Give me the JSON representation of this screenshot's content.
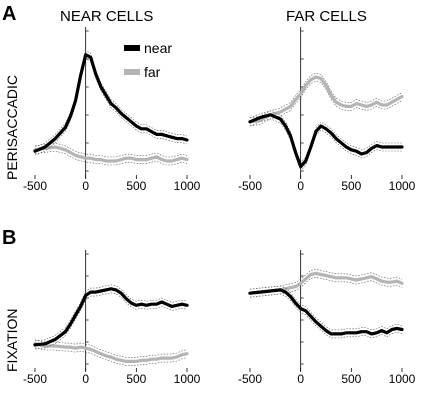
{
  "figure": {
    "panel_a_letter": "A",
    "panel_b_letter": "B",
    "col_near_title": "NEAR CELLS",
    "col_far_title": "FAR CELLS",
    "row_a_label": "PERISACCADIC",
    "row_b_label": "FIXATION",
    "legend_near": "near",
    "legend_far": "far"
  },
  "colors": {
    "near": "#000000",
    "far": "#b4b4b4"
  },
  "chart_data": [
    {
      "type": "line",
      "panel": "A-near",
      "x": [
        -500,
        -400,
        -300,
        -200,
        -150,
        -100,
        -50,
        0,
        50,
        100,
        150,
        200,
        250,
        300,
        350,
        400,
        450,
        500,
        550,
        600,
        650,
        700,
        750,
        800,
        850,
        900,
        950,
        1000
      ],
      "xticks": [
        -500,
        0,
        500,
        1000
      ],
      "xlim": [
        -500,
        1000
      ],
      "ylim": [
        0,
        10
      ],
      "series": [
        {
          "name": "near",
          "values": [
            1.7,
            2.0,
            2.6,
            3.4,
            4.2,
            5.3,
            7.1,
            8.6,
            8.4,
            7.2,
            6.3,
            5.7,
            5.1,
            4.8,
            4.4,
            4.1,
            3.8,
            3.5,
            3.3,
            3.3,
            3.1,
            2.9,
            2.9,
            2.8,
            2.7,
            2.6,
            2.6,
            2.5
          ]
        },
        {
          "name": "far",
          "values": [
            1.8,
            1.9,
            2.0,
            1.8,
            1.6,
            1.4,
            1.3,
            1.2,
            1.2,
            1.1,
            1.1,
            1.0,
            1.0,
            1.0,
            1.1,
            1.2,
            1.2,
            1.1,
            1.1,
            1.1,
            1.2,
            1.3,
            1.1,
            1.0,
            1.0,
            1.1,
            1.2,
            1.1
          ]
        }
      ]
    },
    {
      "type": "line",
      "panel": "A-far",
      "x": [
        -500,
        -400,
        -300,
        -200,
        -150,
        -100,
        -50,
        0,
        50,
        100,
        150,
        200,
        250,
        300,
        350,
        400,
        450,
        500,
        550,
        600,
        650,
        700,
        750,
        800,
        850,
        900,
        950,
        1000
      ],
      "xticks": [
        -500,
        0,
        500,
        1000
      ],
      "xlim": [
        -500,
        1000
      ],
      "ylim": [
        0,
        10
      ],
      "series": [
        {
          "name": "near",
          "values": [
            3.8,
            4.1,
            4.3,
            4.0,
            3.5,
            2.8,
            1.6,
            0.6,
            1.0,
            2.0,
            3.1,
            3.5,
            3.3,
            3.0,
            2.6,
            2.3,
            2.0,
            1.8,
            1.7,
            1.5,
            1.6,
            1.9,
            2.1,
            2.0,
            2.0,
            2.0,
            2.0,
            2.0
          ]
        },
        {
          "name": "far",
          "values": [
            3.8,
            3.9,
            4.3,
            4.5,
            4.7,
            4.9,
            5.4,
            5.8,
            6.4,
            6.8,
            7.0,
            6.9,
            6.4,
            5.7,
            5.2,
            5.0,
            4.9,
            4.9,
            5.1,
            5.0,
            4.9,
            5.0,
            5.2,
            5.0,
            5.0,
            5.2,
            5.4,
            5.6
          ]
        }
      ]
    },
    {
      "type": "line",
      "panel": "B-near",
      "x": [
        -500,
        -400,
        -300,
        -200,
        -150,
        -100,
        -50,
        0,
        50,
        100,
        150,
        200,
        250,
        300,
        350,
        400,
        450,
        500,
        550,
        600,
        650,
        700,
        750,
        800,
        850,
        900,
        950,
        1000
      ],
      "xticks": [
        -500,
        0,
        500,
        1000
      ],
      "xlim": [
        -500,
        1000
      ],
      "ylim": [
        0,
        10
      ],
      "series": [
        {
          "name": "near",
          "values": [
            2.1,
            2.2,
            2.6,
            3.3,
            4.0,
            4.8,
            5.6,
            6.6,
            6.9,
            6.9,
            7.0,
            7.1,
            7.2,
            7.1,
            6.8,
            6.3,
            5.9,
            5.7,
            5.8,
            5.7,
            5.8,
            5.8,
            6.0,
            5.8,
            5.6,
            5.7,
            5.8,
            5.7
          ]
        },
        {
          "name": "far",
          "values": [
            2.2,
            2.0,
            2.0,
            1.9,
            1.9,
            1.8,
            1.9,
            1.8,
            1.7,
            1.5,
            1.3,
            1.1,
            1.0,
            0.8,
            0.7,
            0.6,
            0.6,
            0.6,
            0.7,
            0.7,
            0.8,
            0.8,
            0.9,
            0.9,
            0.9,
            1.0,
            1.2,
            1.3
          ]
        }
      ]
    },
    {
      "type": "line",
      "panel": "B-far",
      "x": [
        -500,
        -400,
        -300,
        -200,
        -150,
        -100,
        -50,
        0,
        50,
        100,
        150,
        200,
        250,
        300,
        350,
        400,
        450,
        500,
        550,
        600,
        650,
        700,
        750,
        800,
        850,
        900,
        950,
        1000
      ],
      "xticks": [
        -500,
        0,
        500,
        1000
      ],
      "xlim": [
        -500,
        1000
      ],
      "ylim": [
        0,
        10
      ],
      "series": [
        {
          "name": "near",
          "values": [
            6.8,
            6.9,
            7.0,
            7.1,
            6.9,
            6.5,
            5.9,
            5.4,
            5.2,
            4.7,
            4.2,
            3.8,
            3.4,
            3.1,
            3.1,
            3.1,
            3.2,
            3.2,
            3.2,
            3.3,
            3.3,
            3.1,
            3.2,
            3.4,
            3.2,
            3.5,
            3.6,
            3.5
          ]
        },
        {
          "name": "far",
          "values": [
            6.8,
            6.9,
            7.0,
            7.1,
            7.2,
            7.3,
            7.4,
            7.7,
            8.1,
            8.5,
            8.6,
            8.5,
            8.4,
            8.3,
            8.2,
            8.2,
            8.2,
            8.1,
            8.0,
            8.1,
            8.2,
            8.3,
            8.1,
            7.9,
            7.8,
            7.8,
            7.9,
            7.7
          ]
        }
      ]
    }
  ]
}
